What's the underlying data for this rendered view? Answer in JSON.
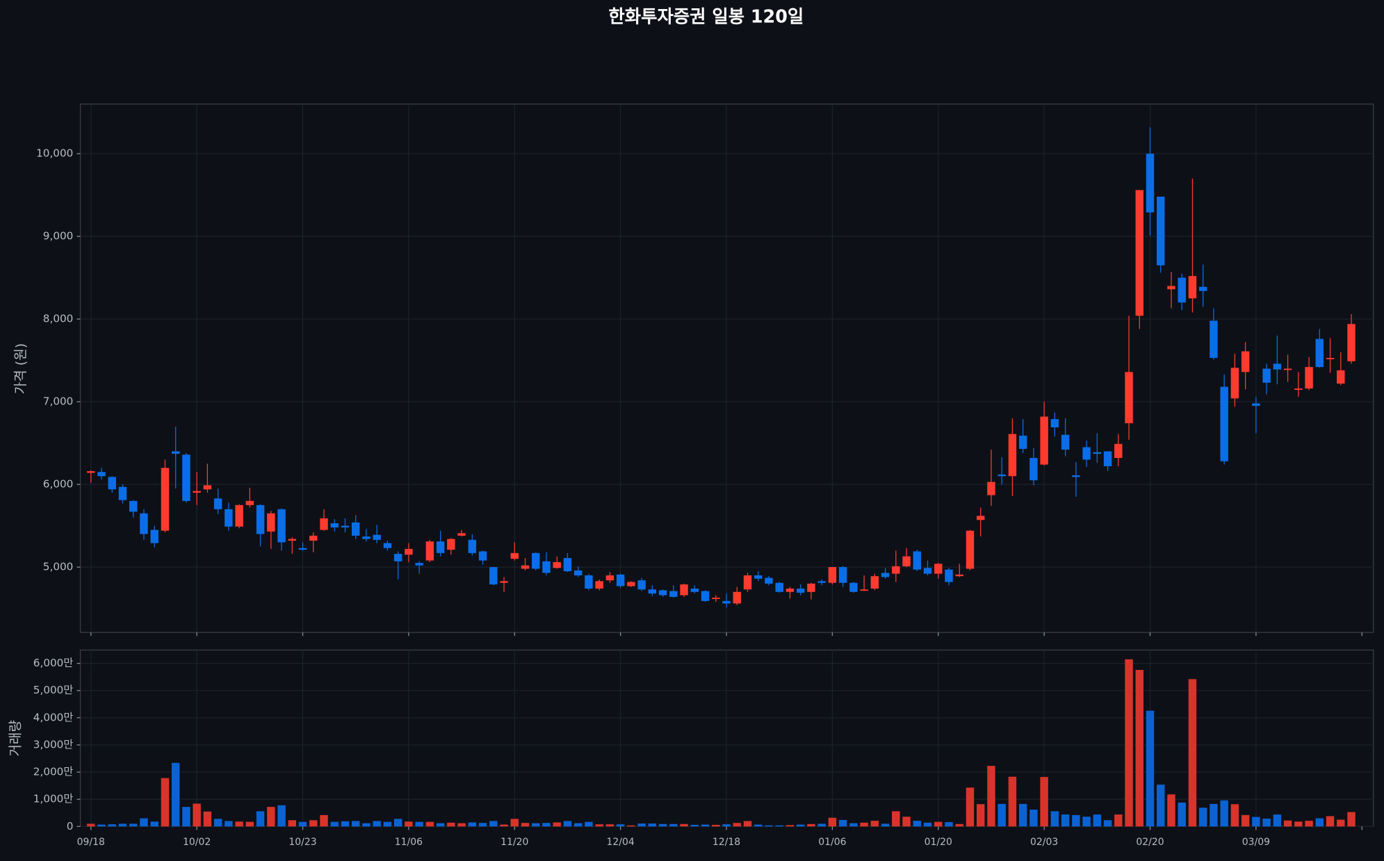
{
  "chart_data": [
    {
      "type": "candlestick",
      "title": "한화투자증권 일봉 120일",
      "ylabel": "가격 (원)",
      "up_color": "#ff3b30",
      "down_color": "#0a6ee8",
      "grid": true,
      "ylim": [
        4210,
        10600
      ],
      "yticks": [
        {
          "value": 5000,
          "label": "5,000"
        },
        {
          "value": 6000,
          "label": "6,000"
        },
        {
          "value": 7000,
          "label": "7,000"
        },
        {
          "value": 8000,
          "label": "8,000"
        },
        {
          "value": 9000,
          "label": "9,000"
        },
        {
          "value": 10000,
          "label": "10,000"
        }
      ],
      "open": [
        6140,
        6150,
        6090,
        5970,
        5800,
        5650,
        5450,
        5440,
        6400,
        6360,
        5900,
        5940,
        5830,
        5700,
        5490,
        5750,
        5750,
        5430,
        5700,
        5320,
        5230,
        5320,
        5450,
        5530,
        5500,
        5540,
        5370,
        5390,
        5290,
        5160,
        5150,
        5050,
        5080,
        5310,
        5210,
        5380,
        5330,
        5190,
        5000,
        4810,
        5100,
        4980,
        5170,
        5070,
        4990,
        5110,
        4960,
        4900,
        4740,
        4840,
        4910,
        4770,
        4840,
        4730,
        4720,
        4710,
        4660,
        4740,
        4710,
        4620,
        4590,
        4560,
        4730,
        4900,
        4870,
        4810,
        4700,
        4740,
        4700,
        4830,
        4810,
        5000,
        4810,
        4720,
        4740,
        4930,
        4920,
        5010,
        5190,
        4990,
        4920,
        4970,
        4890,
        4980,
        5570,
        5870,
        6120,
        6100,
        6590,
        6320,
        6240,
        6790,
        6600,
        6110,
        6450,
        6390,
        6400,
        6320,
        6740,
        8040,
        10000,
        9480,
        8360,
        8500,
        8250,
        8390,
        7980,
        7180,
        7040,
        7360,
        6980,
        7400,
        7460,
        7390,
        7150,
        7160,
        7760,
        7520,
        7220,
        7490
      ],
      "high": [
        6170,
        6200,
        6100,
        6000,
        5810,
        5700,
        5500,
        6300,
        6700,
        6380,
        6150,
        6250,
        5950,
        5780,
        5760,
        5960,
        5760,
        5680,
        5710,
        5360,
        5300,
        5420,
        5700,
        5580,
        5590,
        5630,
        5460,
        5510,
        5320,
        5190,
        5290,
        5070,
        5330,
        5440,
        5350,
        5450,
        5400,
        5200,
        5000,
        4880,
        5300,
        5110,
        5180,
        5180,
        5130,
        5170,
        5010,
        4920,
        4850,
        4940,
        4920,
        4830,
        4870,
        4780,
        4730,
        4780,
        4800,
        4780,
        4720,
        4660,
        4680,
        4760,
        4930,
        4950,
        4890,
        4820,
        4760,
        4790,
        4810,
        4850,
        5000,
        5010,
        4820,
        4900,
        4920,
        4990,
        5200,
        5230,
        5210,
        5080,
        5050,
        4990,
        5040,
        5450,
        5720,
        6420,
        6330,
        6800,
        6790,
        6440,
        7000,
        6870,
        6800,
        6270,
        6530,
        6620,
        6400,
        6610,
        8040,
        9560,
        10320,
        9480,
        8570,
        8550,
        9700,
        8660,
        8130,
        7330,
        7580,
        7720,
        7060,
        7460,
        7800,
        7570,
        7360,
        7540,
        7880,
        7770,
        7600,
        8060
      ],
      "low": [
        6020,
        6060,
        5900,
        5770,
        5600,
        5330,
        5240,
        5420,
        5950,
        5780,
        5750,
        5900,
        5640,
        5440,
        5470,
        5720,
        5250,
        5220,
        5200,
        5160,
        5200,
        5180,
        5440,
        5430,
        5420,
        5340,
        5310,
        5290,
        5200,
        4850,
        5060,
        4920,
        5060,
        5130,
        5150,
        5370,
        5140,
        5030,
        4780,
        4700,
        5080,
        4960,
        4960,
        4900,
        4980,
        4940,
        4880,
        4720,
        4720,
        4810,
        4750,
        4760,
        4710,
        4650,
        4640,
        4630,
        4640,
        4680,
        4580,
        4580,
        4510,
        4540,
        4700,
        4830,
        4780,
        4690,
        4620,
        4660,
        4610,
        4780,
        4790,
        4760,
        4690,
        4710,
        4720,
        4860,
        4820,
        5000,
        4950,
        4900,
        4860,
        4780,
        4880,
        4960,
        5370,
        5740,
        6000,
        5860,
        6380,
        5990,
        6230,
        6580,
        6340,
        5850,
        6210,
        6260,
        6160,
        6220,
        6540,
        7880,
        9010,
        8560,
        8130,
        8110,
        8080,
        8150,
        7510,
        6240,
        6940,
        7150,
        6620,
        7090,
        7210,
        7240,
        7060,
        7140,
        7410,
        7350,
        7200,
        7460
      ],
      "close": [
        6160,
        6100,
        5940,
        5810,
        5670,
        5400,
        5290,
        6200,
        6370,
        5800,
        5920,
        5990,
        5700,
        5490,
        5750,
        5800,
        5400,
        5650,
        5300,
        5340,
        5210,
        5380,
        5590,
        5480,
        5480,
        5380,
        5340,
        5330,
        5230,
        5070,
        5220,
        5020,
        5310,
        5170,
        5340,
        5410,
        5170,
        5080,
        4790,
        4830,
        5170,
        5020,
        4980,
        4930,
        5060,
        4950,
        4900,
        4740,
        4830,
        4900,
        4770,
        4820,
        4730,
        4680,
        4660,
        4640,
        4790,
        4700,
        4590,
        4630,
        4560,
        4700,
        4900,
        4860,
        4800,
        4700,
        4740,
        4690,
        4800,
        4810,
        5000,
        4810,
        4700,
        4730,
        4890,
        4880,
        5010,
        5130,
        4970,
        4920,
        5040,
        4820,
        4910,
        5440,
        5620,
        6030,
        6100,
        6610,
        6430,
        6050,
        6820,
        6690,
        6420,
        6090,
        6300,
        6370,
        6220,
        6490,
        7360,
        9560,
        9290,
        8650,
        8400,
        8200,
        8520,
        8340,
        7530,
        6280,
        7410,
        7610,
        6950,
        7230,
        7390,
        7400,
        7160,
        7420,
        7420,
        7530,
        7380,
        7940
      ]
    },
    {
      "type": "bar",
      "ylabel": "거래량",
      "up_color": "#d9342b",
      "down_color": "#0b63d3",
      "grid": true,
      "ylim": [
        0,
        6490
      ],
      "yticks": [
        0,
        {
          "value": 1000,
          "label": "1,000만"
        },
        {
          "value": 2000,
          "label": "2,000만"
        },
        {
          "value": 3000,
          "label": "3,000만"
        },
        {
          "value": 4000,
          "label": "4,000만"
        },
        {
          "value": 5000,
          "label": "5,000만"
        },
        {
          "value": 6000,
          "label": "6,000만"
        }
      ],
      "categories": [
        "09/18",
        null,
        null,
        null,
        null,
        null,
        null,
        null,
        null,
        null,
        "10/02",
        null,
        null,
        null,
        null,
        null,
        null,
        null,
        null,
        null,
        "10/23",
        null,
        null,
        null,
        null,
        null,
        null,
        null,
        null,
        null,
        "11/06",
        null,
        null,
        null,
        null,
        null,
        null,
        null,
        null,
        null,
        "11/20",
        null,
        null,
        null,
        null,
        null,
        null,
        null,
        null,
        null,
        "12/04",
        null,
        null,
        null,
        null,
        null,
        null,
        null,
        null,
        null,
        "12/18",
        null,
        null,
        null,
        null,
        null,
        null,
        null,
        null,
        null,
        "01/06",
        null,
        null,
        null,
        null,
        null,
        null,
        null,
        null,
        null,
        "01/20",
        null,
        null,
        null,
        null,
        null,
        null,
        null,
        null,
        null,
        "02/03",
        null,
        null,
        null,
        null,
        null,
        null,
        null,
        null,
        null,
        "02/20",
        null,
        null,
        null,
        null,
        null,
        null,
        null,
        null,
        null,
        "03/09",
        null,
        null,
        null,
        null,
        null,
        null,
        null,
        null,
        null
      ],
      "values": [
        100,
        70,
        80,
        100,
        100,
        300,
        180,
        1780,
        2340,
        720,
        840,
        550,
        280,
        200,
        180,
        170,
        560,
        720,
        780,
        230,
        170,
        230,
        420,
        170,
        190,
        200,
        120,
        200,
        170,
        280,
        180,
        170,
        170,
        120,
        140,
        120,
        150,
        130,
        200,
        70,
        280,
        130,
        120,
        130,
        150,
        200,
        120,
        170,
        80,
        80,
        80,
        40,
        110,
        110,
        90,
        90,
        90,
        60,
        70,
        60,
        80,
        130,
        200,
        70,
        40,
        40,
        50,
        70,
        90,
        100,
        320,
        240,
        120,
        140,
        210,
        100,
        560,
        360,
        210,
        140,
        170,
        160,
        90,
        1430,
        820,
        2230,
        830,
        1830,
        830,
        620,
        1820,
        560,
        440,
        420,
        360,
        440,
        230,
        440,
        6150,
        5760,
        4260,
        1540,
        1180,
        880,
        5420,
        690,
        830,
        960,
        820,
        420,
        350,
        290,
        440,
        220,
        180,
        210,
        300,
        380,
        250,
        530
      ]
    }
  ]
}
